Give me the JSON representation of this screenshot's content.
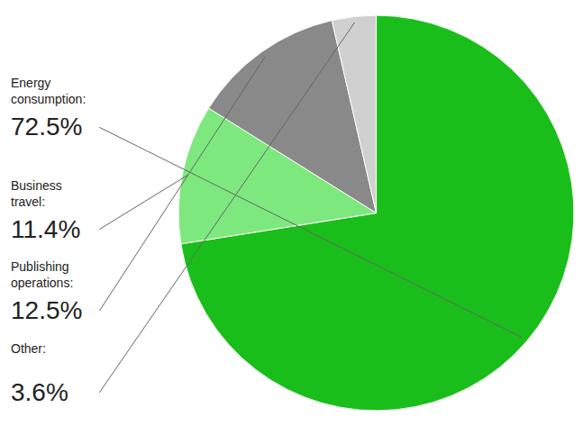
{
  "chart_data": {
    "type": "pie",
    "categories": [
      "Energy\nconsumption:",
      "Business\ntravel:",
      "Publishing\noperations:",
      "Other:"
    ],
    "values": [
      72.5,
      11.4,
      12.5,
      3.6
    ],
    "value_labels": [
      "72.5%",
      "11.4%",
      "12.5%",
      "3.6%"
    ],
    "colors": [
      "#1abe1a",
      "#7de87d",
      "#898989",
      "#d0d0d0"
    ],
    "data_labels": true
  }
}
